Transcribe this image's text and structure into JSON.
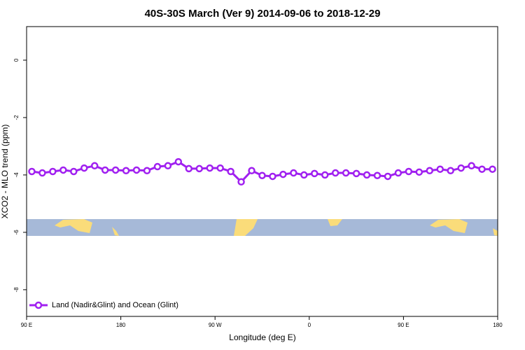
{
  "chart_data": {
    "type": "line",
    "title": "40S-30S March (Ver 9)   2014-09-06 to 2018-12-29",
    "x_label": "Longitude (deg E)",
    "y_label": "XCO2 - MLO trend (ppm)",
    "xlim": [
      90,
      540
    ],
    "ylim": [
      -8.93,
      1.17
    ],
    "xticks": [
      {
        "value": 90,
        "label": "90 E"
      },
      {
        "value": 180,
        "label": "180"
      },
      {
        "value": 270,
        "label": "90 W"
      },
      {
        "value": 360,
        "label": "0"
      },
      {
        "value": 450,
        "label": "90 E"
      },
      {
        "value": 540,
        "label": "180"
      }
    ],
    "yticks": [
      -8,
      -6,
      -4,
      -2,
      0
    ],
    "legend_position": "lower left",
    "x": [
      95,
      105,
      115,
      125,
      135,
      145,
      155,
      165,
      175,
      185,
      195,
      205,
      215,
      225,
      235,
      245,
      255,
      265,
      275,
      285,
      295,
      305,
      315,
      325,
      335,
      345,
      355,
      365,
      375,
      385,
      395,
      405,
      415,
      425,
      435,
      445,
      455,
      465,
      475,
      485,
      495,
      505,
      515,
      525,
      535
    ],
    "series": [
      {
        "name": "Land (Nadir&Glint) and Ocean (Glint)",
        "color": "#a020f0",
        "values": [
          -3.88,
          -3.93,
          -3.88,
          -3.83,
          -3.88,
          -3.76,
          -3.68,
          -3.83,
          -3.83,
          -3.85,
          -3.83,
          -3.85,
          -3.71,
          -3.68,
          -3.54,
          -3.78,
          -3.78,
          -3.76,
          -3.76,
          -3.88,
          -4.24,
          -3.85,
          -4.02,
          -4.05,
          -3.98,
          -3.93,
          -4.0,
          -3.95,
          -4.0,
          -3.93,
          -3.93,
          -3.95,
          -4.0,
          -4.02,
          -4.05,
          -3.93,
          -3.88,
          -3.9,
          -3.85,
          -3.8,
          -3.85,
          -3.76,
          -3.68,
          -3.8,
          -3.8
        ]
      }
    ]
  }
}
